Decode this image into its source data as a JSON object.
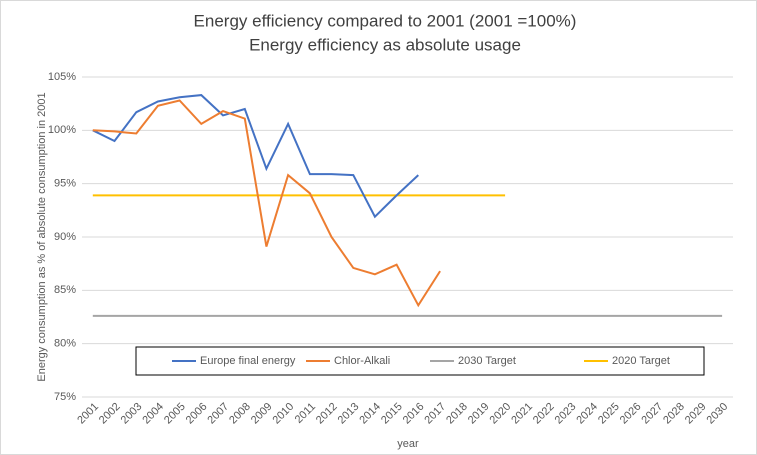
{
  "chart_data": {
    "type": "line",
    "title": "Energy efficiency compared to 2001 (2001 =100%)",
    "subtitle": "Energy efficiency as absolute usage",
    "x_label": "year",
    "y_label": "Energy consumption as % of absolute consumption in 2001",
    "categories": [
      "2001",
      "2002",
      "2003",
      "2004",
      "2005",
      "2006",
      "2007",
      "2008",
      "2009",
      "2010",
      "2011",
      "2012",
      "2013",
      "2014",
      "2015",
      "2016",
      "2017",
      "2018",
      "2019",
      "2020",
      "2021",
      "2022",
      "2023",
      "2024",
      "2025",
      "2026",
      "2027",
      "2028",
      "2029",
      "2030"
    ],
    "series": [
      {
        "name": "Europe final energy",
        "color": "#4472c4",
        "values": [
          100,
          99,
          101.7,
          102.7,
          103.1,
          103.3,
          101.4,
          102,
          96.4,
          100.6,
          95.9,
          95.9,
          95.8,
          91.9,
          93.9,
          95.8,
          null,
          null,
          null,
          null,
          null,
          null,
          null,
          null,
          null,
          null,
          null,
          null,
          null,
          null
        ]
      },
      {
        "name": "Chlor-Alkali",
        "color": "#ed7d31",
        "values": [
          100,
          99.9,
          99.7,
          102.3,
          102.8,
          100.6,
          101.8,
          101.1,
          89.1,
          95.8,
          94.1,
          90,
          87.1,
          86.5,
          87.4,
          83.6,
          86.8,
          null,
          null,
          null,
          null,
          null,
          null,
          null,
          null,
          null,
          null,
          null,
          null,
          null
        ]
      },
      {
        "name": "2030 Target",
        "color": "#a5a5a5",
        "values": [
          82.6,
          82.6,
          82.6,
          82.6,
          82.6,
          82.6,
          82.6,
          82.6,
          82.6,
          82.6,
          82.6,
          82.6,
          82.6,
          82.6,
          82.6,
          82.6,
          82.6,
          82.6,
          82.6,
          82.6,
          82.6,
          82.6,
          82.6,
          82.6,
          82.6,
          82.6,
          82.6,
          82.6,
          82.6,
          82.6
        ]
      },
      {
        "name": "2020 Target",
        "color": "#ffc000",
        "values": [
          93.9,
          93.9,
          93.9,
          93.9,
          93.9,
          93.9,
          93.9,
          93.9,
          93.9,
          93.9,
          93.9,
          93.9,
          93.9,
          93.9,
          93.9,
          93.9,
          93.9,
          93.9,
          93.9,
          93.9,
          null,
          null,
          null,
          null,
          null,
          null,
          null,
          null,
          null,
          null
        ]
      }
    ],
    "ylim": [
      75,
      105
    ],
    "yticks": [
      {
        "value": 75,
        "label": "75%"
      },
      {
        "value": 80,
        "label": "80%"
      },
      {
        "value": 85,
        "label": "85%"
      },
      {
        "value": 90,
        "label": "90%"
      },
      {
        "value": 95,
        "label": "95%"
      },
      {
        "value": 100,
        "label": "100%"
      },
      {
        "value": 105,
        "label": "105%"
      }
    ],
    "grid": true
  }
}
